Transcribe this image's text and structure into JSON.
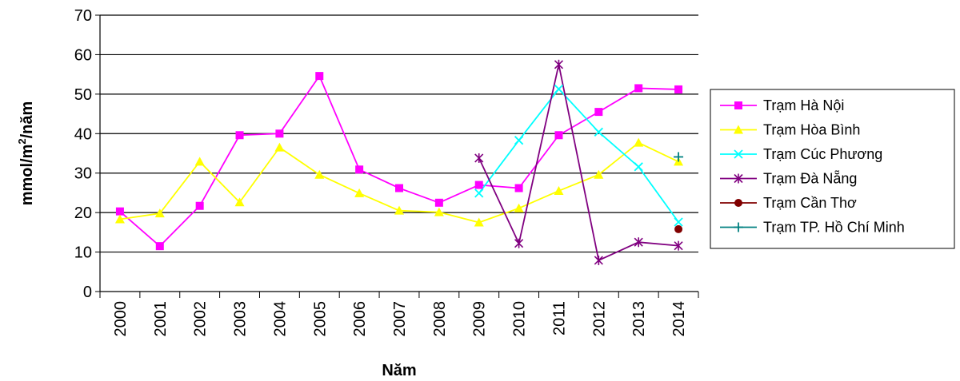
{
  "chart_data": {
    "type": "line",
    "xlabel": "Năm",
    "ylabel": "mmol/m²/năm",
    "ylim": [
      0,
      70
    ],
    "yticks": [
      0,
      10,
      20,
      30,
      40,
      50,
      60,
      70
    ],
    "grid": true,
    "legend_position": "right",
    "categories": [
      "2000",
      "2001",
      "2002",
      "2003",
      "2004",
      "2005",
      "2006",
      "2007",
      "2008",
      "2009",
      "2010",
      "2011",
      "2012",
      "2013",
      "2014"
    ],
    "series": [
      {
        "name": "Trạm Hà Nội",
        "color": "#ff00ff",
        "marker": "square",
        "values": [
          20.3,
          11.5,
          21.7,
          39.6,
          40.0,
          54.6,
          30.9,
          26.2,
          22.5,
          27.0,
          26.2,
          39.6,
          45.5,
          51.5,
          51.2
        ]
      },
      {
        "name": "Trạm Hòa Bình",
        "color": "#ffff00",
        "marker": "triangle",
        "values": [
          18.3,
          19.8,
          32.9,
          22.6,
          36.5,
          29.6,
          24.9,
          20.5,
          20.1,
          17.5,
          21.1,
          25.5,
          29.6,
          37.7,
          32.9
        ]
      },
      {
        "name": "Trạm Cúc Phương",
        "color": "#00ffff",
        "marker": "x",
        "values": [
          null,
          null,
          null,
          null,
          null,
          null,
          null,
          null,
          null,
          24.9,
          38.3,
          51.3,
          40.4,
          31.6,
          17.6
        ]
      },
      {
        "name": "Trạm Đà Nẵng",
        "color": "#800080",
        "marker": "star",
        "values": [
          null,
          null,
          null,
          null,
          null,
          null,
          null,
          null,
          null,
          33.8,
          12.2,
          57.5,
          7.9,
          12.5,
          11.6
        ]
      },
      {
        "name": "Trạm Cần Thơ",
        "color": "#800000",
        "marker": "circle",
        "values": [
          null,
          null,
          null,
          null,
          null,
          null,
          null,
          null,
          null,
          null,
          null,
          null,
          null,
          null,
          15.8
        ]
      },
      {
        "name": "Trạm TP. Hồ Chí Minh",
        "color": "#008080",
        "marker": "plus",
        "values": [
          null,
          null,
          null,
          null,
          null,
          null,
          null,
          null,
          null,
          null,
          null,
          null,
          null,
          null,
          34.1
        ]
      }
    ]
  }
}
